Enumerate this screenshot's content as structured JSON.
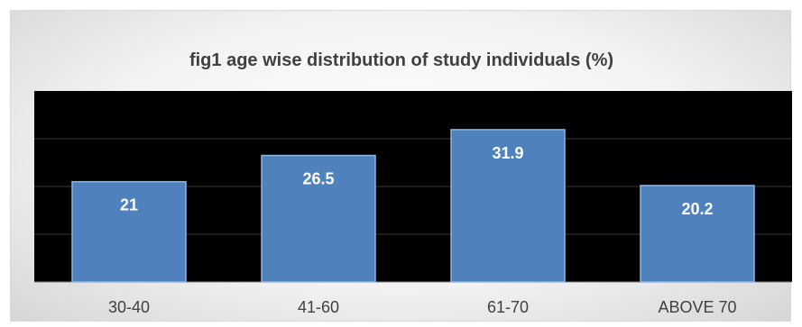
{
  "chart_data": {
    "type": "bar",
    "title": "fig1 age wise distribution of study individuals  (%)",
    "categories": [
      "30-40",
      "41-60",
      "61-70",
      "ABOVE 70"
    ],
    "values": [
      21,
      26.5,
      31.9,
      20.2
    ],
    "data_labels": [
      "21",
      "26.5",
      "31.9",
      "20.2"
    ],
    "xlabel": "",
    "ylabel": "",
    "ylim": [
      0,
      40
    ],
    "grid": true,
    "plot_background": "#000000",
    "bar_color": "#4f81bd",
    "bar_edge_color": "#8eb4e3",
    "legend": "none"
  }
}
